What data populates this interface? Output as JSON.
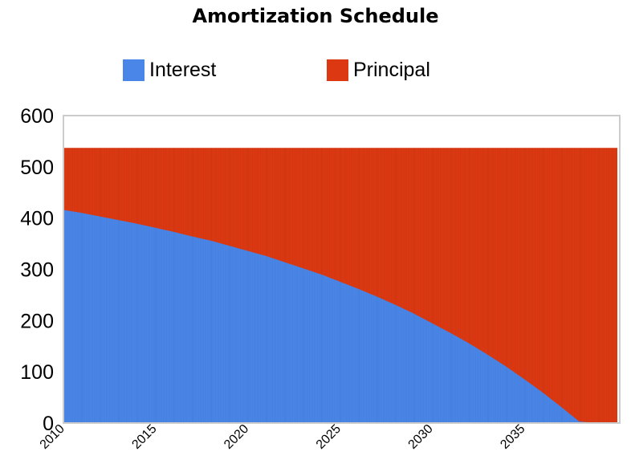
{
  "title": "Amortization Schedule",
  "colors": {
    "interest": "#4a86e8",
    "principal": "#dc3912",
    "grid": "#cccccc"
  },
  "legend": [
    {
      "name": "Interest",
      "color": "#4a86e8"
    },
    {
      "name": "Principal",
      "color": "#dc3912"
    }
  ],
  "chart_data": {
    "type": "bar",
    "stacked": true,
    "title": "Amortization Schedule",
    "xlabel": "",
    "ylabel": "",
    "ylim": [
      0,
      600
    ],
    "yticks": [
      "0",
      "100",
      "200",
      "300",
      "400",
      "500",
      "600"
    ],
    "xticks": [
      "2010",
      "2015",
      "2020",
      "2025",
      "2030",
      "2035"
    ],
    "payment": 537,
    "x_start_year": 2010,
    "x": [
      "2010",
      "2011",
      "2012",
      "2013",
      "2014",
      "2015",
      "2016",
      "2017",
      "2018",
      "2019",
      "2020",
      "2021",
      "2022",
      "2023",
      "2024",
      "2025",
      "2026",
      "2027",
      "2028",
      "2029",
      "2030",
      "2031",
      "2032",
      "2033",
      "2034",
      "2035",
      "2036",
      "2037",
      "2038",
      "2039",
      "2040"
    ],
    "series": [
      {
        "name": "Interest",
        "values": [
          416,
          410,
          403,
          396,
          389,
          381,
          373,
          364,
          356,
          346,
          336,
          326,
          314,
          302,
          290,
          276,
          262,
          247,
          231,
          214,
          195,
          176,
          156,
          134,
          111,
          86,
          60,
          32,
          3,
          0,
          0
        ]
      },
      {
        "name": "Principal",
        "values": [
          121,
          127,
          134,
          141,
          148,
          156,
          164,
          173,
          181,
          191,
          201,
          211,
          223,
          235,
          247,
          261,
          275,
          290,
          306,
          323,
          342,
          361,
          381,
          403,
          426,
          451,
          477,
          505,
          534,
          537,
          537
        ]
      }
    ],
    "grid": false,
    "legend_position": "top"
  }
}
